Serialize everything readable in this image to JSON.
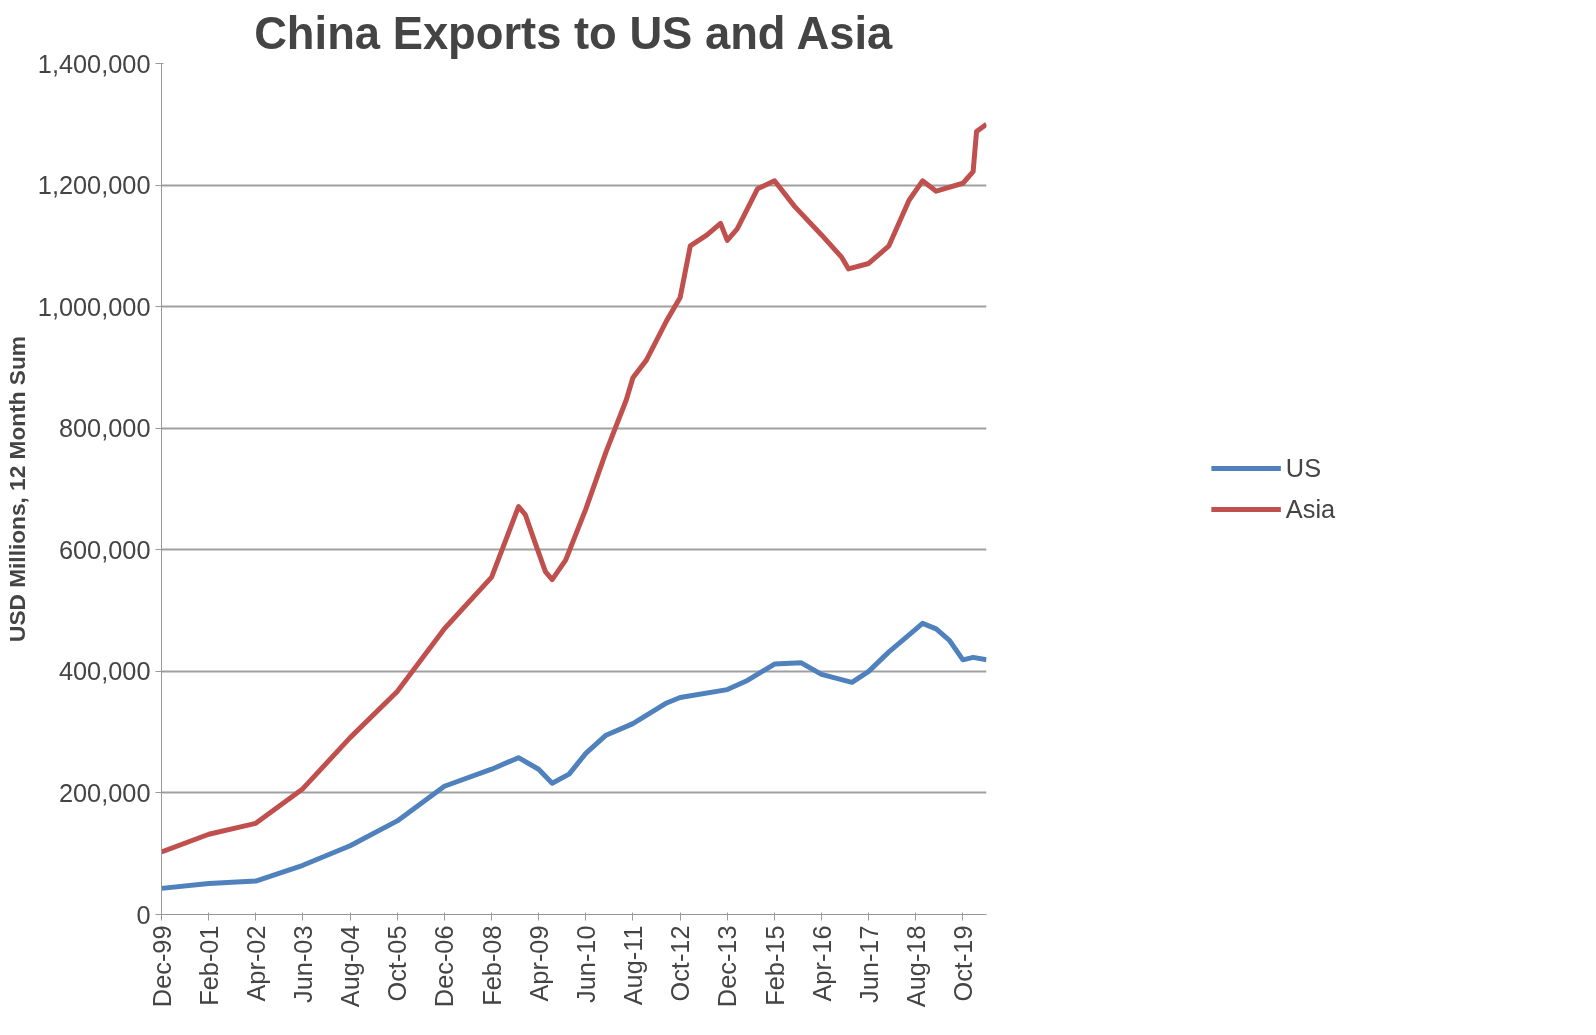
{
  "chart_data": {
    "type": "line",
    "title": "China Exports to US and Asia",
    "ylabel": "USD Millions, 12 Month Sum",
    "xlim": [
      "1999-12",
      "2020-05"
    ],
    "xticks": [
      {
        "value": "1999-12",
        "label": "Dec-99"
      },
      {
        "value": "2001-02",
        "label": "Feb-01"
      },
      {
        "value": "2002-04",
        "label": "Apr-02"
      },
      {
        "value": "2003-06",
        "label": "Jun-03"
      },
      {
        "value": "2004-08",
        "label": "Aug-04"
      },
      {
        "value": "2005-10",
        "label": "Oct-05"
      },
      {
        "value": "2006-12",
        "label": "Dec-06"
      },
      {
        "value": "2008-02",
        "label": "Feb-08"
      },
      {
        "value": "2009-04",
        "label": "Apr-09"
      },
      {
        "value": "2010-06",
        "label": "Jun-10"
      },
      {
        "value": "2011-08",
        "label": "Aug-11"
      },
      {
        "value": "2012-10",
        "label": "Oct-12"
      },
      {
        "value": "2013-12",
        "label": "Dec-13"
      },
      {
        "value": "2015-02",
        "label": "Feb-15"
      },
      {
        "value": "2016-04",
        "label": "Apr-16"
      },
      {
        "value": "2017-06",
        "label": "Jun-17"
      },
      {
        "value": "2018-08",
        "label": "Aug-18"
      },
      {
        "value": "2019-10",
        "label": "Oct-19"
      }
    ],
    "ylim": [
      0,
      1400000
    ],
    "yticks": [
      {
        "value": 0,
        "label": "0"
      },
      {
        "value": 200000,
        "label": "200,000"
      },
      {
        "value": 400000,
        "label": "400,000"
      },
      {
        "value": 600000,
        "label": "600,000"
      },
      {
        "value": 800000,
        "label": "800,000"
      },
      {
        "value": 1000000,
        "label": "1,000,000"
      },
      {
        "value": 1200000,
        "label": "1,200,000"
      },
      {
        "value": 1400000,
        "label": "1,400,000"
      }
    ],
    "grid": "y",
    "legend": "right",
    "marker": "none",
    "line_style": "solid",
    "series": [
      {
        "name": "US",
        "color": "#4f81bd",
        "x": [
          "1999-12",
          "2001-02",
          "2002-04",
          "2003-06",
          "2004-08",
          "2005-10",
          "2006-12",
          "2008-02",
          "2008-10",
          "2009-04",
          "2009-08",
          "2010-01",
          "2010-06",
          "2010-12",
          "2011-08",
          "2012-06",
          "2012-10",
          "2013-12",
          "2014-06",
          "2015-02",
          "2015-10",
          "2016-04",
          "2017-01",
          "2017-06",
          "2017-12",
          "2018-06",
          "2018-10",
          "2019-02",
          "2019-06",
          "2019-10",
          "2020-01",
          "2020-05"
        ],
        "values": [
          43000,
          51000,
          55000,
          81000,
          113000,
          154000,
          211000,
          239000,
          258000,
          239000,
          216000,
          231000,
          265000,
          295000,
          314000,
          348000,
          357000,
          370000,
          385000,
          412000,
          414000,
          395000,
          382000,
          400000,
          432000,
          460000,
          479000,
          470000,
          451000,
          419000,
          423000,
          419000
        ]
      },
      {
        "name": "Asia",
        "color": "#c0504d",
        "x": [
          "1999-12",
          "2001-02",
          "2002-04",
          "2003-06",
          "2004-08",
          "2005-10",
          "2006-12",
          "2008-02",
          "2008-10",
          "2008-12",
          "2009-03",
          "2009-06",
          "2009-08",
          "2009-12",
          "2010-06",
          "2010-12",
          "2011-06",
          "2011-08",
          "2011-12",
          "2012-06",
          "2012-10",
          "2013-01",
          "2013-06",
          "2013-10",
          "2013-12",
          "2014-03",
          "2014-09",
          "2015-02",
          "2015-08",
          "2016-04",
          "2016-10",
          "2016-12",
          "2017-06",
          "2017-12",
          "2018-06",
          "2018-10",
          "2019-02",
          "2019-10",
          "2020-01",
          "2020-02",
          "2020-05"
        ],
        "values": [
          103000,
          132000,
          150000,
          207000,
          291000,
          367000,
          470000,
          555000,
          671000,
          658000,
          611000,
          564000,
          551000,
          583000,
          667000,
          761000,
          846000,
          883000,
          912000,
          977000,
          1015000,
          1100000,
          1118000,
          1137000,
          1109000,
          1128000,
          1194000,
          1207000,
          1165000,
          1118000,
          1081000,
          1062000,
          1071000,
          1100000,
          1175000,
          1207000,
          1190000,
          1203000,
          1222000,
          1288000,
          1300000
        ]
      }
    ]
  }
}
